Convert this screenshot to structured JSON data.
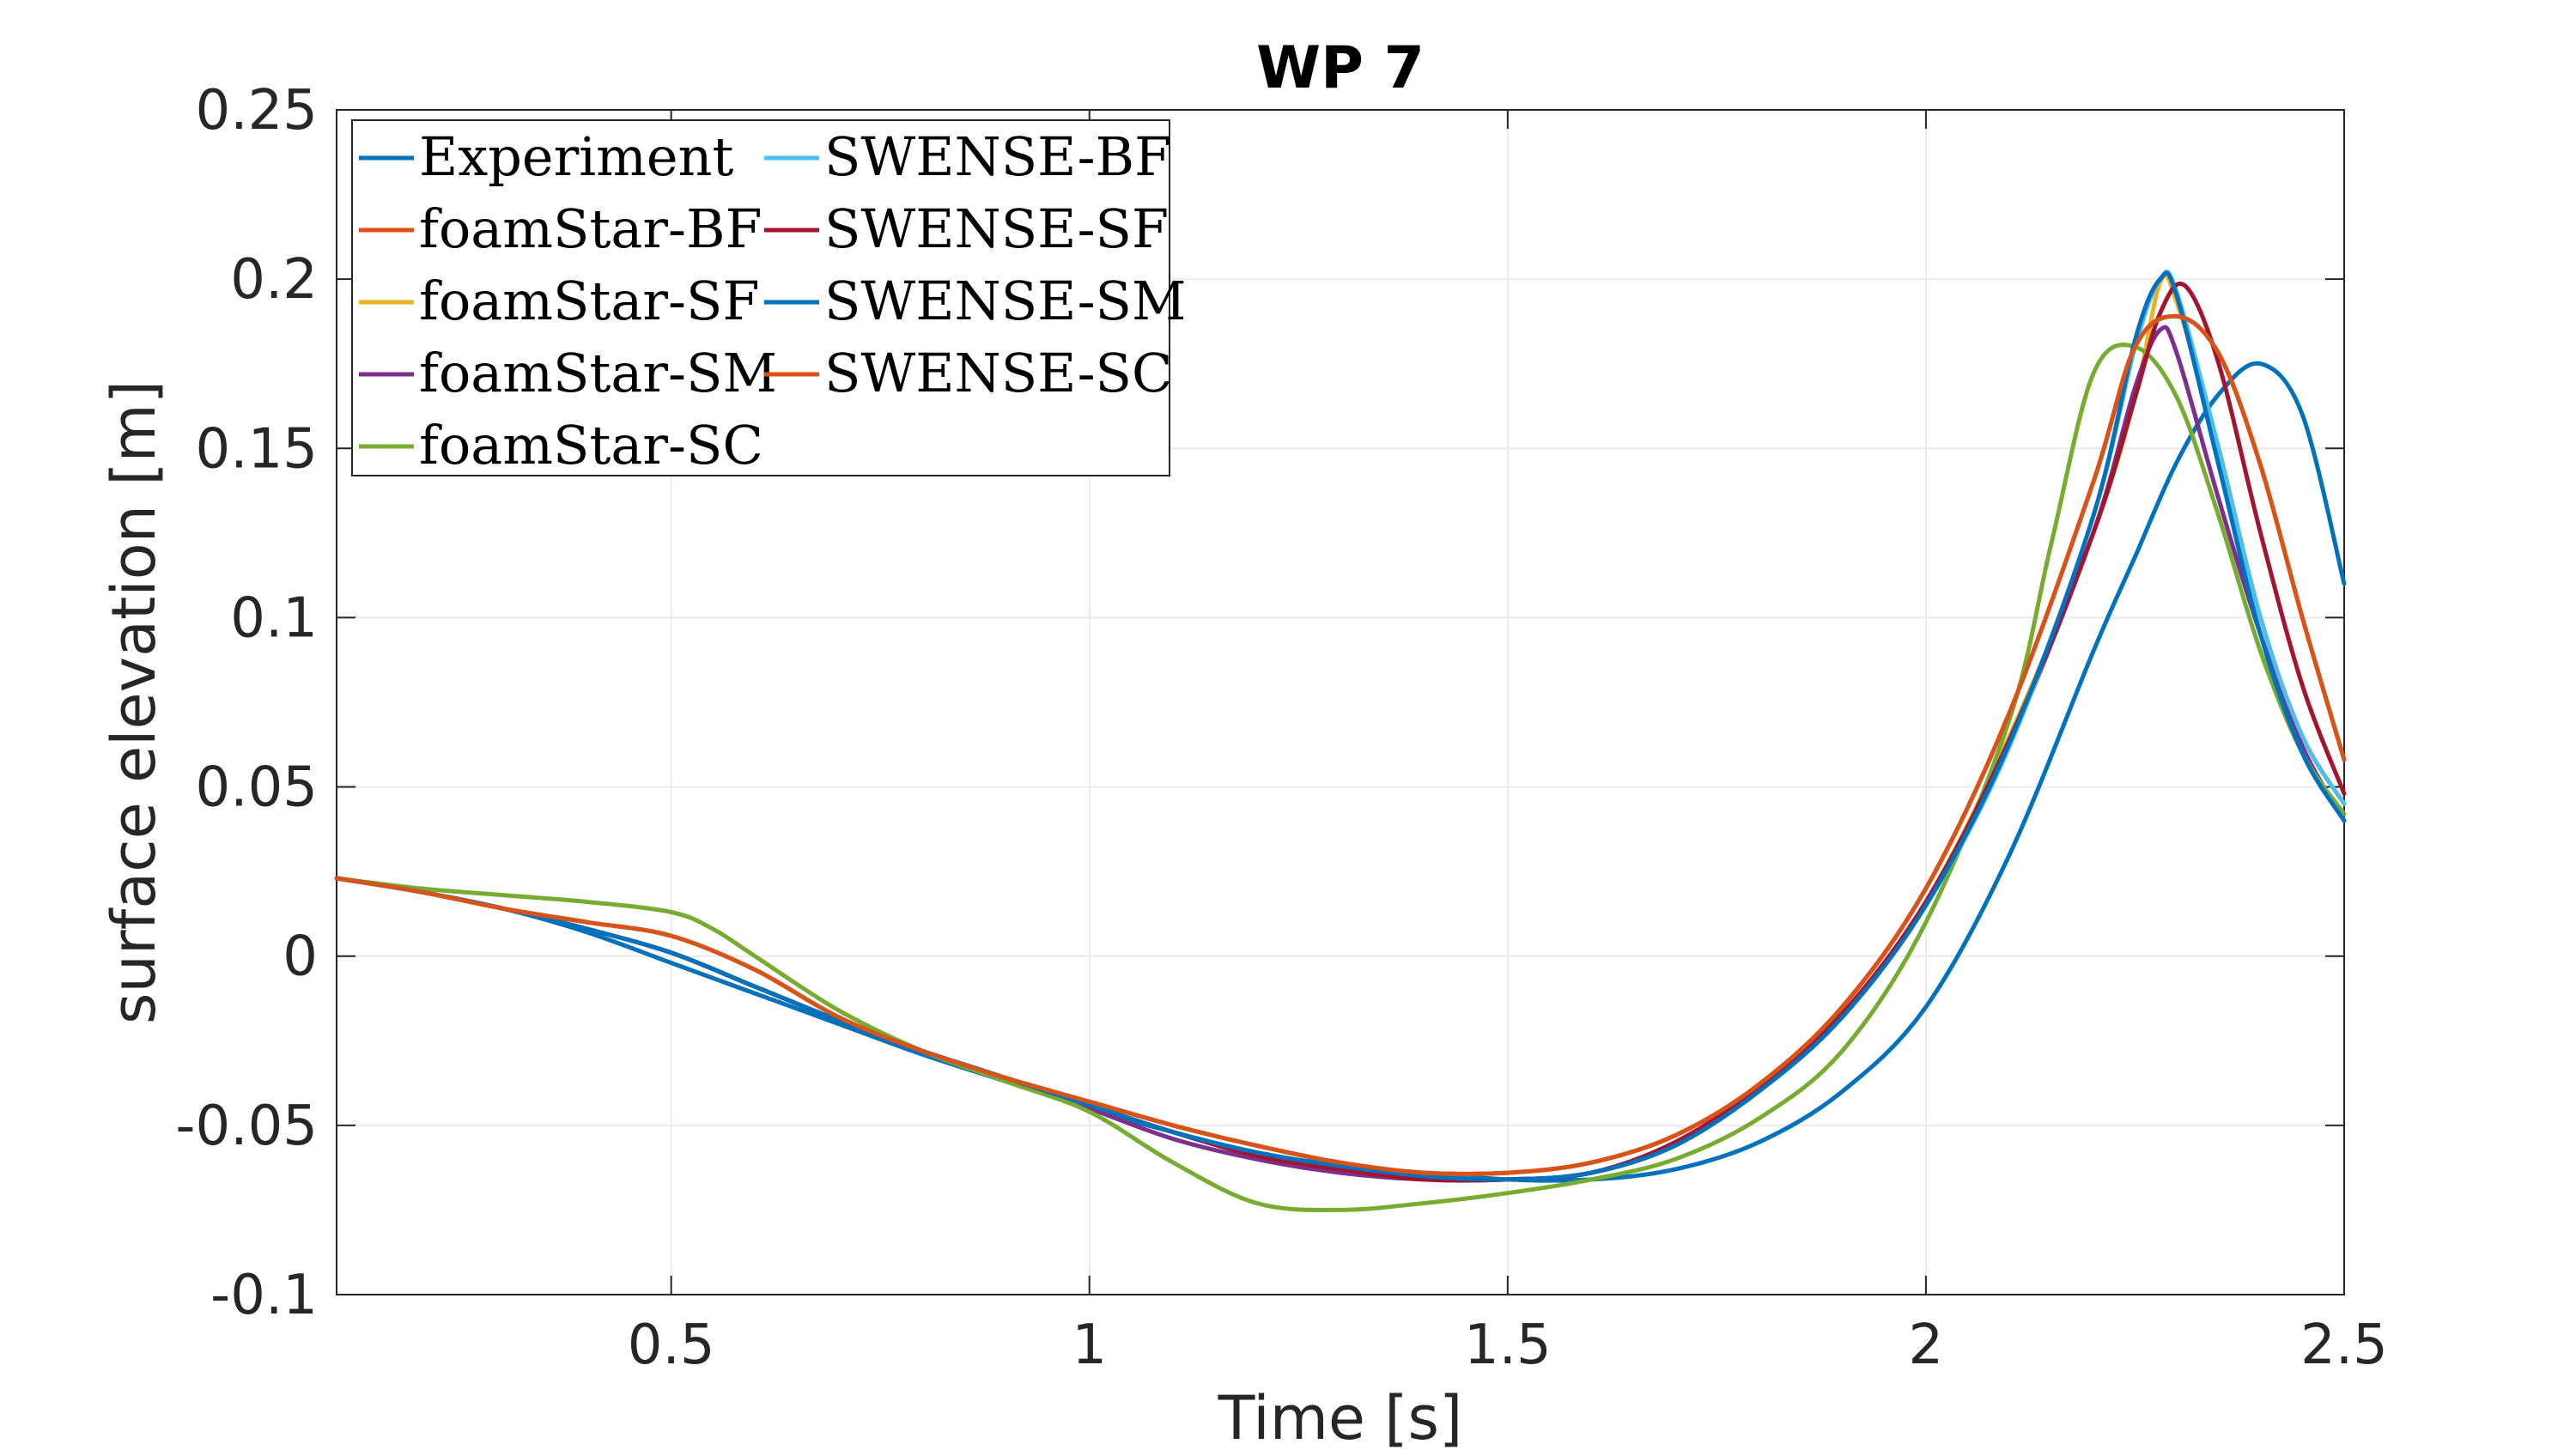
{
  "chart_data": {
    "type": "line",
    "title": "WP 7",
    "xlabel": "Time [s]",
    "ylabel": "surface elevation [m]",
    "xlim": [
      0.1,
      2.5
    ],
    "ylim": [
      -0.1,
      0.25
    ],
    "xticks": [
      0.5,
      1,
      1.5,
      2,
      2.5
    ],
    "xtick_labels": [
      "0.5",
      "1",
      "1.5",
      "2",
      "2.5"
    ],
    "yticks": [
      -0.1,
      -0.05,
      0,
      0.05,
      0.1,
      0.15,
      0.2,
      0.25
    ],
    "ytick_labels": [
      "-0.1",
      "-0.05",
      "0",
      "0.05",
      "0.1",
      "0.15",
      "0.2",
      "0.25"
    ],
    "grid": true,
    "legend_position": "top-left",
    "legend_columns": 2,
    "series": [
      {
        "name": "Experiment",
        "color": "#0072BD",
        "x": [
          0.1,
          0.2,
          0.3,
          0.4,
          0.5,
          0.6,
          0.7,
          0.8,
          0.9,
          1.0,
          1.1,
          1.2,
          1.3,
          1.4,
          1.5,
          1.6,
          1.7,
          1.8,
          1.9,
          2.0,
          2.1,
          2.2,
          2.25,
          2.3,
          2.35,
          2.4,
          2.45,
          2.5
        ],
        "y": [
          0.023,
          0.019,
          0.014,
          0.007,
          -0.002,
          -0.011,
          -0.02,
          -0.029,
          -0.037,
          -0.045,
          -0.052,
          -0.058,
          -0.062,
          -0.064,
          -0.066,
          -0.066,
          -0.063,
          -0.055,
          -0.04,
          -0.015,
          0.03,
          0.09,
          0.118,
          0.146,
          0.166,
          0.175,
          0.16,
          0.11
        ]
      },
      {
        "name": "foamStar-BF",
        "color": "#D95319",
        "x": [
          0.1,
          0.2,
          0.3,
          0.4,
          0.5,
          0.6,
          0.7,
          0.8,
          0.9,
          1.0,
          1.1,
          1.2,
          1.3,
          1.4,
          1.5,
          1.6,
          1.7,
          1.8,
          1.9,
          2.0,
          2.1,
          2.2,
          2.25,
          2.3,
          2.35,
          2.4,
          2.45,
          2.5
        ],
        "y": [
          0.023,
          0.019,
          0.014,
          0.01,
          0.006,
          -0.004,
          -0.018,
          -0.028,
          -0.036,
          -0.043,
          -0.05,
          -0.056,
          -0.061,
          -0.064,
          -0.064,
          -0.061,
          -0.053,
          -0.038,
          -0.015,
          0.02,
          0.072,
          0.14,
          0.18,
          0.189,
          0.178,
          0.145,
          0.1,
          0.058
        ]
      },
      {
        "name": "foamStar-SF",
        "color": "#EDB120",
        "x": [
          0.1,
          0.2,
          0.3,
          0.4,
          0.5,
          0.6,
          0.7,
          0.8,
          0.9,
          1.0,
          1.1,
          1.2,
          1.3,
          1.4,
          1.5,
          1.6,
          1.7,
          1.8,
          1.9,
          2.0,
          2.1,
          2.2,
          2.25,
          2.28,
          2.3,
          2.35,
          2.4,
          2.45,
          2.5
        ],
        "y": [
          0.023,
          0.019,
          0.014,
          0.008,
          0.001,
          -0.009,
          -0.019,
          -0.028,
          -0.036,
          -0.044,
          -0.052,
          -0.058,
          -0.062,
          -0.065,
          -0.066,
          -0.064,
          -0.056,
          -0.04,
          -0.018,
          0.016,
          0.065,
          0.125,
          0.165,
          0.199,
          0.193,
          0.15,
          0.1,
          0.065,
          0.045
        ]
      },
      {
        "name": "foamStar-SM",
        "color": "#7E2F8E",
        "x": [
          0.1,
          0.2,
          0.3,
          0.4,
          0.5,
          0.6,
          0.7,
          0.8,
          0.9,
          1.0,
          1.1,
          1.2,
          1.3,
          1.4,
          1.5,
          1.6,
          1.7,
          1.8,
          1.9,
          2.0,
          2.1,
          2.2,
          2.25,
          2.28,
          2.3,
          2.35,
          2.4,
          2.45,
          2.5
        ],
        "y": [
          0.023,
          0.019,
          0.014,
          0.008,
          0.001,
          -0.009,
          -0.019,
          -0.028,
          -0.036,
          -0.045,
          -0.054,
          -0.06,
          -0.064,
          -0.066,
          -0.066,
          -0.064,
          -0.055,
          -0.039,
          -0.017,
          0.016,
          0.063,
          0.125,
          0.168,
          0.185,
          0.178,
          0.135,
          0.095,
          0.062,
          0.04
        ]
      },
      {
        "name": "foamStar-SC",
        "color": "#77AC30",
        "x": [
          0.1,
          0.2,
          0.3,
          0.4,
          0.5,
          0.55,
          0.6,
          0.7,
          0.8,
          0.9,
          1.0,
          1.1,
          1.2,
          1.3,
          1.4,
          1.5,
          1.6,
          1.7,
          1.8,
          1.9,
          2.0,
          2.1,
          2.15,
          2.2,
          2.25,
          2.3,
          2.35,
          2.4,
          2.45,
          2.5
        ],
        "y": [
          0.023,
          0.02,
          0.018,
          0.016,
          0.013,
          0.008,
          0.0,
          -0.016,
          -0.028,
          -0.037,
          -0.046,
          -0.061,
          -0.073,
          -0.075,
          -0.073,
          -0.07,
          -0.066,
          -0.06,
          -0.048,
          -0.028,
          0.01,
          0.07,
          0.122,
          0.172,
          0.18,
          0.165,
          0.13,
          0.09,
          0.06,
          0.042
        ]
      },
      {
        "name": "SWENSE-BF",
        "color": "#4DBEEE",
        "x": [
          0.1,
          0.2,
          0.3,
          0.4,
          0.5,
          0.6,
          0.7,
          0.8,
          0.9,
          1.0,
          1.1,
          1.2,
          1.3,
          1.4,
          1.5,
          1.6,
          1.7,
          1.8,
          1.9,
          2.0,
          2.1,
          2.2,
          2.25,
          2.28,
          2.3,
          2.35,
          2.4,
          2.45,
          2.5
        ],
        "y": [
          0.023,
          0.019,
          0.014,
          0.008,
          0.001,
          -0.009,
          -0.019,
          -0.028,
          -0.036,
          -0.044,
          -0.052,
          -0.058,
          -0.062,
          -0.065,
          -0.066,
          -0.064,
          -0.056,
          -0.04,
          -0.018,
          0.015,
          0.062,
          0.13,
          0.18,
          0.2,
          0.196,
          0.15,
          0.1,
          0.065,
          0.045
        ]
      },
      {
        "name": "SWENSE-SF",
        "color": "#A2142F",
        "x": [
          0.1,
          0.2,
          0.3,
          0.4,
          0.5,
          0.6,
          0.7,
          0.8,
          0.9,
          1.0,
          1.1,
          1.2,
          1.3,
          1.4,
          1.5,
          1.6,
          1.7,
          1.8,
          1.9,
          2.0,
          2.1,
          2.2,
          2.25,
          2.28,
          2.31,
          2.35,
          2.4,
          2.45,
          2.5
        ],
        "y": [
          0.023,
          0.019,
          0.014,
          0.008,
          0.001,
          -0.009,
          -0.019,
          -0.028,
          -0.036,
          -0.044,
          -0.052,
          -0.059,
          -0.063,
          -0.066,
          -0.066,
          -0.064,
          -0.055,
          -0.039,
          -0.017,
          0.016,
          0.064,
          0.125,
          0.165,
          0.19,
          0.198,
          0.175,
          0.125,
          0.08,
          0.048
        ]
      },
      {
        "name": "SWENSE-SM",
        "color": "#0072BD",
        "x": [
          0.1,
          0.2,
          0.3,
          0.4,
          0.5,
          0.6,
          0.7,
          0.8,
          0.9,
          1.0,
          1.1,
          1.2,
          1.3,
          1.4,
          1.5,
          1.6,
          1.7,
          1.8,
          1.9,
          2.0,
          2.1,
          2.2,
          2.25,
          2.28,
          2.3,
          2.35,
          2.4,
          2.45,
          2.5
        ],
        "y": [
          0.023,
          0.019,
          0.014,
          0.008,
          0.001,
          -0.009,
          -0.019,
          -0.028,
          -0.036,
          -0.044,
          -0.052,
          -0.058,
          -0.062,
          -0.065,
          -0.066,
          -0.064,
          -0.056,
          -0.04,
          -0.018,
          0.015,
          0.063,
          0.13,
          0.182,
          0.2,
          0.195,
          0.145,
          0.095,
          0.06,
          0.04
        ]
      },
      {
        "name": "SWENSE-SC",
        "color": "#D95319",
        "x": [
          0.1,
          0.2,
          0.3,
          0.4,
          0.5,
          0.6,
          0.7,
          0.8,
          0.9,
          1.0,
          1.1,
          1.2,
          1.3,
          1.4,
          1.5,
          1.6,
          1.7,
          1.8,
          1.9,
          2.0,
          2.1,
          2.2,
          2.25,
          2.3,
          2.35,
          2.4,
          2.45,
          2.5
        ],
        "y": [
          0.023,
          0.019,
          0.014,
          0.01,
          0.006,
          -0.004,
          -0.018,
          -0.028,
          -0.036,
          -0.043,
          -0.05,
          -0.056,
          -0.061,
          -0.064,
          -0.064,
          -0.061,
          -0.053,
          -0.038,
          -0.015,
          0.02,
          0.072,
          0.14,
          0.18,
          0.189,
          0.178,
          0.145,
          0.1,
          0.058
        ]
      }
    ]
  }
}
